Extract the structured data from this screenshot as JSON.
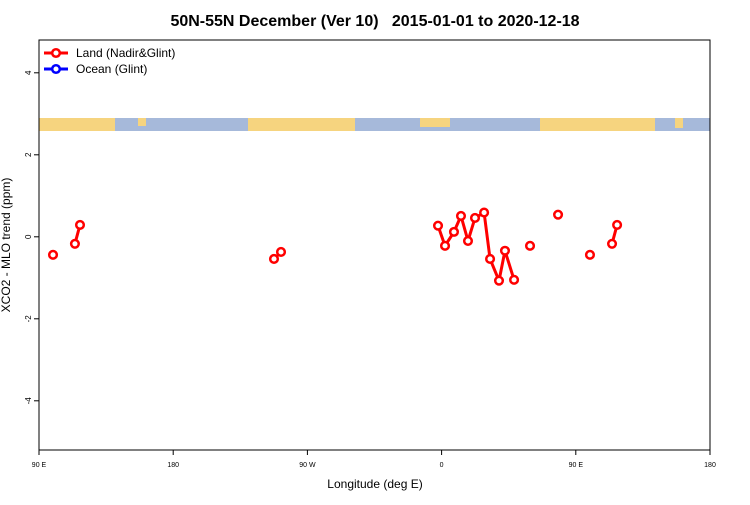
{
  "chart_data": {
    "type": "line",
    "title": "50N-55N December (Ver 10)   2015-01-01 to 2020-12-18",
    "xlabel": "Longitude (deg E)",
    "ylabel": "XCO2 - MLO trend (ppm)",
    "x": [
      99.4,
      null,
      114.1,
      117.5,
      null,
      247.6,
      252.3,
      null,
      357.6,
      362.3,
      368.3,
      373.0,
      377.7,
      382.4,
      388.5,
      392.5,
      398.5,
      402.5,
      408.6,
      null,
      419.3,
      null,
      438.1,
      null,
      459.5,
      null,
      474.3,
      477.7
    ],
    "series": [
      {
        "name": "Land (Nadir&Glint)",
        "color": "#ff0000",
        "values": [
          -0.44,
          null,
          -0.17,
          0.29,
          null,
          -0.54,
          -0.37,
          null,
          0.27,
          -0.22,
          0.12,
          0.51,
          -0.1,
          0.46,
          0.59,
          -0.54,
          -1.07,
          -0.34,
          -1.05,
          null,
          -0.22,
          null,
          0.54,
          null,
          -0.44,
          null,
          -0.17,
          0.29
        ]
      },
      {
        "name": "Ocean (Glint)",
        "color": "#0000ff",
        "values": [
          null,
          null,
          null,
          null,
          null,
          null,
          null,
          null,
          null,
          null,
          null,
          null,
          null,
          null,
          null,
          null,
          null,
          null,
          null,
          null,
          null,
          null,
          null,
          null,
          null,
          null,
          null,
          null
        ]
      }
    ],
    "xlim": [
      90,
      540
    ],
    "xticks": [
      {
        "value": 90,
        "label": "90 E"
      },
      180,
      {
        "value": 270,
        "label": "90 W"
      },
      {
        "value": 360,
        "label": "0"
      },
      {
        "value": 450,
        "label": "90 E"
      },
      {
        "value": 540,
        "label": "180"
      }
    ],
    "ylim": [
      -5.2,
      4.8
    ],
    "yticks": [
      -4,
      -2,
      0,
      2,
      4
    ],
    "legend": "top-left"
  }
}
